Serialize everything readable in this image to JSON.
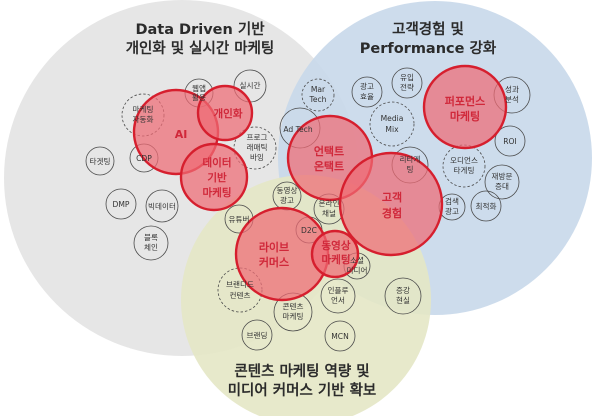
{
  "regions": {
    "data_driven": {
      "line1": "Data Driven 기반",
      "line2": "개인화 및 실시간 마케팅",
      "color": "#e6e6e6"
    },
    "customer_experience": {
      "line1": "고객경험 및",
      "line2": "Performance 강화",
      "color": "#c9d9ea"
    },
    "content_marketing": {
      "line1": "콘텐츠 마케팅 역량 및",
      "line2": "미디어 커머스 기반 확보",
      "color": "#e4e7c5"
    }
  },
  "red_circles": {
    "ai": "AI",
    "personalization": "개인화",
    "data_marketing": [
      "데이터",
      "기반",
      "마케팅"
    ],
    "untact_ontact": [
      "언택트",
      "온택트"
    ],
    "customer_experience": [
      "고객",
      "경험"
    ],
    "performance_marketing": [
      "퍼포먼스",
      "마케팅"
    ],
    "live_commerce": [
      "라이브",
      "커머스"
    ],
    "video_marketing": [
      "동영상",
      "마케팅"
    ]
  },
  "nodes": {
    "marketing_automation": [
      "마케팅",
      "자동화"
    ],
    "web_usage": [
      "웹앱",
      "활용"
    ],
    "realtime": "실시간",
    "programmatic_buying": [
      "프로그",
      "래매틱",
      "바잉"
    ],
    "targeting": "타겟팅",
    "cdp": "CDP",
    "dmp": "DMP",
    "big_data": "빅데이터",
    "blockchain": [
      "블록",
      "체인"
    ],
    "martech": [
      "Mar",
      "Tech"
    ],
    "ad_tech": "Ad Tech",
    "ad_efficiency": [
      "광고",
      "효율"
    ],
    "inflow_strategy": [
      "유입",
      "전략"
    ],
    "media_mix": [
      "Media",
      "Mix"
    ],
    "retargeting": [
      "리타게",
      "팅"
    ],
    "conversion_analysis": [
      "성과",
      "분석"
    ],
    "roi": "ROI",
    "audience_targeting": [
      "오디언스",
      "타게팅"
    ],
    "repurchase": [
      "재방문",
      "증대"
    ],
    "optimization": "최적화",
    "search_ad": [
      "검색",
      "광고"
    ],
    "video_ad": [
      "동영상",
      "광고"
    ],
    "youtuber": "유튜버",
    "online_channel": [
      "온라인",
      "채널"
    ],
    "d2c": "D2C",
    "social_media": [
      "소셜",
      "미디어"
    ],
    "branded_content": [
      "브랜디드",
      "컨텐츠"
    ],
    "influencer": [
      "인플루",
      "언서"
    ],
    "content_marketing": [
      "콘텐츠",
      "마케팅"
    ],
    "ar_vr": [
      "증강",
      "현실"
    ],
    "branding": "브랜딩",
    "mcn": "MCN"
  }
}
